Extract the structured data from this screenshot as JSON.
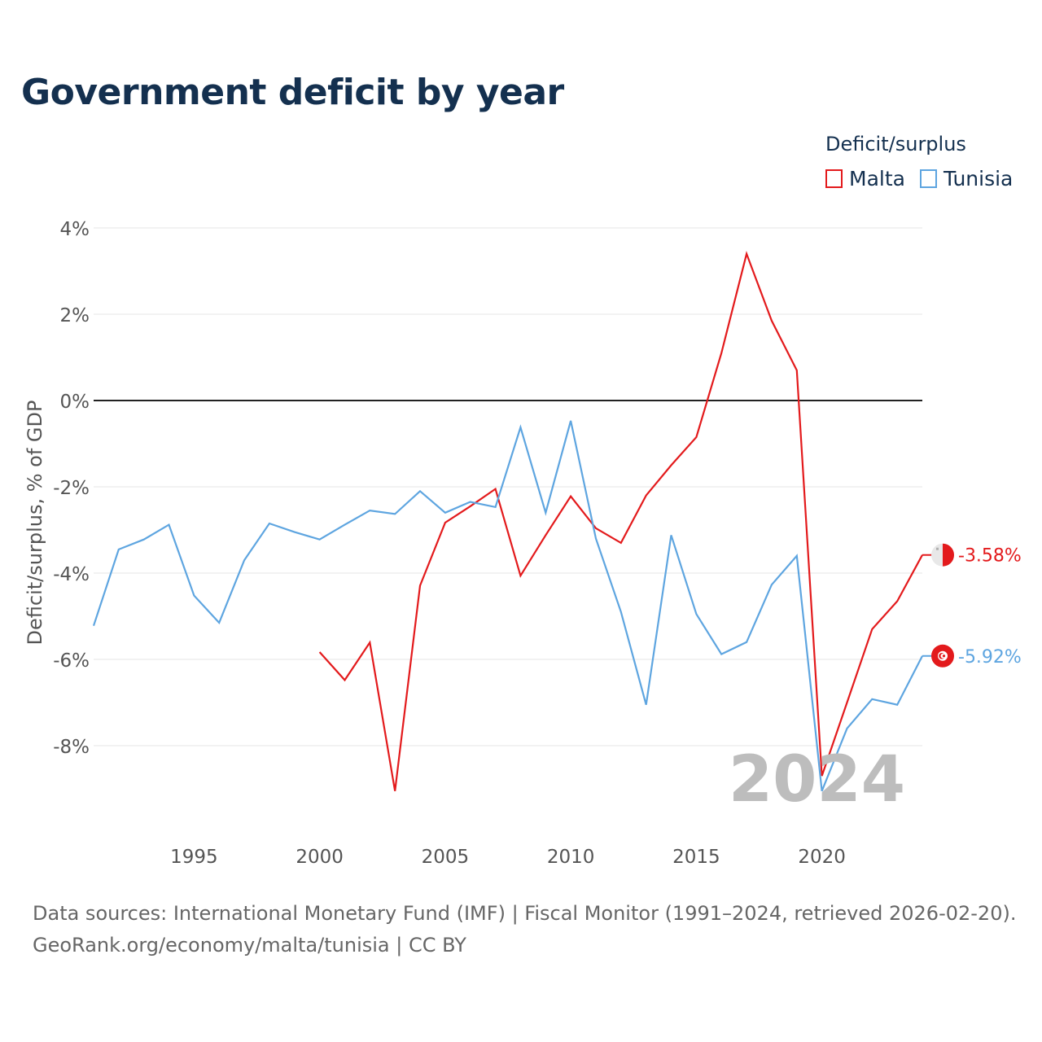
{
  "chart_data": {
    "type": "line",
    "title": "Government deficit by year",
    "legend_title": "Deficit/surplus",
    "legend_position": "top-right",
    "ylabel": "Deficit/surplus, % of GDP",
    "xlabel": "",
    "xlim": [
      1991,
      2024
    ],
    "ylim": [
      -10,
      4
    ],
    "x_ticks": [
      1995,
      2000,
      2005,
      2010,
      2015,
      2020
    ],
    "y_ticks": [
      {
        "value": 4,
        "label": "4%"
      },
      {
        "value": 2,
        "label": "2%"
      },
      {
        "value": 0,
        "label": "0%"
      },
      {
        "value": -2,
        "label": "-2%"
      },
      {
        "value": -4,
        "label": "-4%"
      },
      {
        "value": -6,
        "label": "-6%"
      },
      {
        "value": -8,
        "label": "-8%"
      }
    ],
    "year_watermark": "2024",
    "series": [
      {
        "name": "Malta",
        "color": "#e31a1c",
        "end_label": "-3.58%",
        "flag_icon": "malta-flag-icon",
        "points": [
          [
            2000,
            -5.83
          ],
          [
            2001,
            -6.48
          ],
          [
            2002,
            -5.61
          ],
          [
            2003,
            -9.05
          ],
          [
            2004,
            -4.29
          ],
          [
            2005,
            -2.83
          ],
          [
            2006,
            -2.45
          ],
          [
            2007,
            -2.05
          ],
          [
            2008,
            -4.06
          ],
          [
            2009,
            -3.12
          ],
          [
            2010,
            -2.22
          ],
          [
            2011,
            -2.96
          ],
          [
            2012,
            -3.3
          ],
          [
            2013,
            -2.2
          ],
          [
            2014,
            -1.5
          ],
          [
            2015,
            -0.85
          ],
          [
            2016,
            1.1
          ],
          [
            2017,
            3.4
          ],
          [
            2018,
            1.85
          ],
          [
            2019,
            0.7
          ],
          [
            2020,
            -8.7
          ],
          [
            2021,
            -7.0
          ],
          [
            2022,
            -5.3
          ],
          [
            2023,
            -4.65
          ],
          [
            2024,
            -3.58
          ]
        ]
      },
      {
        "name": "Tunisia",
        "color": "#5ea5e0",
        "end_label": "-5.92%",
        "flag_icon": "tunisia-flag-icon",
        "points": [
          [
            1991,
            -5.22
          ],
          [
            1992,
            -3.45
          ],
          [
            1993,
            -3.22
          ],
          [
            1994,
            -2.88
          ],
          [
            1995,
            -4.52
          ],
          [
            1996,
            -5.15
          ],
          [
            1997,
            -3.7
          ],
          [
            1998,
            -2.85
          ],
          [
            1999,
            -3.05
          ],
          [
            2000,
            -3.22
          ],
          [
            2001,
            -2.88
          ],
          [
            2002,
            -2.55
          ],
          [
            2003,
            -2.63
          ],
          [
            2004,
            -2.1
          ],
          [
            2005,
            -2.6
          ],
          [
            2006,
            -2.35
          ],
          [
            2007,
            -2.47
          ],
          [
            2008,
            -0.62
          ],
          [
            2009,
            -2.6
          ],
          [
            2010,
            -0.47
          ],
          [
            2011,
            -3.2
          ],
          [
            2012,
            -4.9
          ],
          [
            2013,
            -7.05
          ],
          [
            2014,
            -3.12
          ],
          [
            2015,
            -4.95
          ],
          [
            2016,
            -5.88
          ],
          [
            2017,
            -5.6
          ],
          [
            2018,
            -4.27
          ],
          [
            2019,
            -3.6
          ],
          [
            2020,
            -9.05
          ],
          [
            2021,
            -7.6
          ],
          [
            2022,
            -6.92
          ],
          [
            2023,
            -7.05
          ],
          [
            2024,
            -5.92
          ]
        ]
      }
    ]
  },
  "footer": {
    "line1": "Data sources: International Monetary Fund (IMF) | Fiscal Monitor (1991–2024, retrieved 2026-02-20).",
    "line2": "GeoRank.org/economy/malta/tunisia | CC BY"
  }
}
